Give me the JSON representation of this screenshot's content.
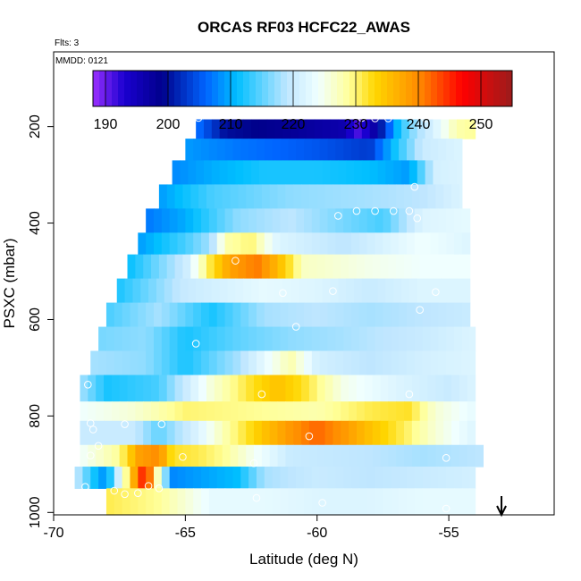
{
  "chart_data": {
    "type": "heatmap",
    "title": "ORCAS RF03 HCFC22_AWAS",
    "annotations": [
      "Flts: 3",
      "MMDD: 0121"
    ],
    "xlabel": "Latitude (deg N)",
    "ylabel": "PSXC (mbar)",
    "xlim": [
      -70,
      -51
    ],
    "ylim": [
      1005,
      45
    ],
    "x_ticks": [
      -70,
      -65,
      -60,
      -55
    ],
    "x_tick_labels": [
      "-70",
      "-65",
      "-60",
      "-55"
    ],
    "y_ticks": [
      200,
      400,
      600,
      800,
      1000
    ],
    "y_tick_labels": [
      "200",
      "400",
      "600",
      "800",
      "1000"
    ],
    "colorbar": {
      "range": [
        188,
        255
      ],
      "ticks": [
        190,
        200,
        210,
        220,
        230,
        240,
        250
      ],
      "tick_labels": [
        "190",
        "200",
        "210",
        "220",
        "230",
        "240",
        "250"
      ],
      "placement": "top-inside"
    },
    "colormap": [
      {
        "v": 188,
        "c": "#9b30ff"
      },
      {
        "v": 193,
        "c": "#1a00d0"
      },
      {
        "v": 199,
        "c": "#00008b"
      },
      {
        "v": 206,
        "c": "#0064ff"
      },
      {
        "v": 211,
        "c": "#00bfff"
      },
      {
        "v": 219,
        "c": "#bfe6ff"
      },
      {
        "v": 224,
        "c": "#f0ffff"
      },
      {
        "v": 229,
        "c": "#ffff99"
      },
      {
        "v": 233,
        "c": "#ffd700"
      },
      {
        "v": 240,
        "c": "#ff8c00"
      },
      {
        "v": 247,
        "c": "#ff0000"
      },
      {
        "v": 255,
        "c": "#9b1c1c"
      }
    ],
    "bands": [
      {
        "p0": 185,
        "p1": 225,
        "x0": -64.6,
        "x1": -54.0,
        "stops": [
          [
            -64.6,
            207
          ],
          [
            -63.5,
            200
          ],
          [
            -61.0,
            198
          ],
          [
            -59.0,
            196
          ],
          [
            -58.5,
            191
          ],
          [
            -58.0,
            194
          ],
          [
            -57.0,
            210
          ],
          [
            -56.5,
            216
          ],
          [
            -55.5,
            222
          ],
          [
            -54.7,
            228
          ],
          [
            -54.0,
            229
          ]
        ]
      },
      {
        "p0": 225,
        "p1": 270,
        "x0": -65.0,
        "x1": -54.5,
        "stops": [
          [
            -65.0,
            209
          ],
          [
            -63.0,
            207
          ],
          [
            -60.0,
            205
          ],
          [
            -58.0,
            203
          ],
          [
            -57.0,
            212
          ],
          [
            -56.0,
            220
          ],
          [
            -54.5,
            222
          ]
        ]
      },
      {
        "p0": 270,
        "p1": 320,
        "x0": -65.5,
        "x1": -54.5,
        "stops": [
          [
            -65.5,
            208
          ],
          [
            -64.0,
            210
          ],
          [
            -62.0,
            212
          ],
          [
            -60.0,
            212
          ],
          [
            -58.0,
            211
          ],
          [
            -56.5,
            209
          ],
          [
            -55.5,
            221
          ],
          [
            -54.5,
            222
          ]
        ]
      },
      {
        "p0": 320,
        "p1": 370,
        "x0": -66.0,
        "x1": -54.5,
        "stops": [
          [
            -66.0,
            209
          ],
          [
            -64.0,
            214
          ],
          [
            -61.0,
            217
          ],
          [
            -58.0,
            218
          ],
          [
            -56.0,
            219
          ],
          [
            -54.5,
            222
          ]
        ]
      },
      {
        "p0": 370,
        "p1": 420,
        "x0": -66.5,
        "x1": -54.2,
        "stops": [
          [
            -66.5,
            207
          ],
          [
            -65.0,
            210
          ],
          [
            -63.0,
            217
          ],
          [
            -61.0,
            219
          ],
          [
            -59.0,
            216
          ],
          [
            -57.5,
            214
          ],
          [
            -56.0,
            222
          ],
          [
            -54.2,
            223
          ]
        ]
      },
      {
        "p0": 420,
        "p1": 465,
        "x0": -66.8,
        "x1": -54.2,
        "stops": [
          [
            -66.8,
            209
          ],
          [
            -65.0,
            214
          ],
          [
            -64.0,
            218
          ],
          [
            -63.5,
            228
          ],
          [
            -62.5,
            230
          ],
          [
            -61.5,
            222
          ],
          [
            -59.0,
            219
          ],
          [
            -56.0,
            224
          ],
          [
            -54.2,
            222
          ]
        ]
      },
      {
        "p0": 465,
        "p1": 515,
        "x0": -67.2,
        "x1": -54.2,
        "stops": [
          [
            -67.2,
            211
          ],
          [
            -65.0,
            220
          ],
          [
            -64.0,
            232
          ],
          [
            -63.3,
            238
          ],
          [
            -62.3,
            241
          ],
          [
            -61.5,
            236
          ],
          [
            -60.5,
            227
          ],
          [
            -58.0,
            225
          ],
          [
            -56.0,
            224
          ],
          [
            -54.2,
            224
          ]
        ]
      },
      {
        "p0": 515,
        "p1": 565,
        "x0": -67.6,
        "x1": -54.2,
        "stops": [
          [
            -67.6,
            212
          ],
          [
            -65.0,
            220
          ],
          [
            -62.0,
            223
          ],
          [
            -60.0,
            222
          ],
          [
            -58.0,
            220
          ],
          [
            -56.0,
            222
          ],
          [
            -54.2,
            222
          ]
        ]
      },
      {
        "p0": 565,
        "p1": 615,
        "x0": -68.0,
        "x1": -54.2,
        "stops": [
          [
            -68.0,
            214
          ],
          [
            -66.0,
            218
          ],
          [
            -64.0,
            212
          ],
          [
            -62.0,
            218
          ],
          [
            -60.0,
            219
          ],
          [
            -58.0,
            218
          ],
          [
            -56.0,
            219
          ],
          [
            -54.2,
            220
          ]
        ]
      },
      {
        "p0": 615,
        "p1": 665,
        "x0": -68.3,
        "x1": -54.0,
        "stops": [
          [
            -68.3,
            216
          ],
          [
            -66.5,
            217
          ],
          [
            -65.0,
            212
          ],
          [
            -63.0,
            215
          ],
          [
            -61.0,
            217
          ],
          [
            -59.0,
            218
          ],
          [
            -56.0,
            220
          ],
          [
            -54.0,
            222
          ]
        ]
      },
      {
        "p0": 665,
        "p1": 715,
        "x0": -68.6,
        "x1": -54.0,
        "stops": [
          [
            -68.6,
            218
          ],
          [
            -66.5,
            217
          ],
          [
            -65.0,
            212
          ],
          [
            -63.0,
            218
          ],
          [
            -61.0,
            228
          ],
          [
            -60.0,
            221
          ],
          [
            -58.0,
            219
          ],
          [
            -56.0,
            221
          ],
          [
            -54.0,
            222
          ]
        ]
      },
      {
        "p0": 715,
        "p1": 770,
        "x0": -69.0,
        "x1": -54.0,
        "stops": [
          [
            -69.0,
            218
          ],
          [
            -68.0,
            212
          ],
          [
            -66.0,
            214
          ],
          [
            -64.0,
            226
          ],
          [
            -62.5,
            232
          ],
          [
            -61.5,
            235
          ],
          [
            -60.5,
            232
          ],
          [
            -59.0,
            225
          ],
          [
            -57.0,
            222
          ],
          [
            -55.0,
            220
          ],
          [
            -54.0,
            222
          ]
        ]
      },
      {
        "p0": 770,
        "p1": 810,
        "x0": -69.0,
        "x1": -54.0,
        "stops": [
          [
            -69.0,
            224
          ],
          [
            -67.0,
            226
          ],
          [
            -65.0,
            230
          ],
          [
            -62.0,
            229
          ],
          [
            -60.0,
            228
          ],
          [
            -58.0,
            231
          ],
          [
            -56.5,
            232
          ],
          [
            -55.5,
            226
          ],
          [
            -54.0,
            223
          ]
        ]
      },
      {
        "p0": 810,
        "p1": 860,
        "x0": -69.0,
        "x1": -54.0,
        "stops": [
          [
            -69.0,
            220
          ],
          [
            -67.0,
            220
          ],
          [
            -66.0,
            215
          ],
          [
            -64.5,
            222
          ],
          [
            -63.5,
            228
          ],
          [
            -62.0,
            235
          ],
          [
            -61.0,
            239
          ],
          [
            -60.0,
            242
          ],
          [
            -59.0,
            239
          ],
          [
            -58.0,
            235
          ],
          [
            -56.5,
            230
          ],
          [
            -55.5,
            226
          ],
          [
            -54.0,
            222
          ]
        ]
      },
      {
        "p0": 860,
        "p1": 905,
        "x0": -69.0,
        "x1": -53.7,
        "stops": [
          [
            -69.0,
            224
          ],
          [
            -67.5,
            229
          ],
          [
            -66.8,
            238
          ],
          [
            -66.0,
            240
          ],
          [
            -65.5,
            232
          ],
          [
            -64.5,
            231
          ],
          [
            -63.5,
            229
          ],
          [
            -62.5,
            225
          ],
          [
            -61.0,
            220
          ],
          [
            -58.0,
            219
          ],
          [
            -56.0,
            218
          ],
          [
            -53.7,
            219
          ]
        ]
      },
      {
        "p0": 905,
        "p1": 950,
        "x0": -69.2,
        "x1": -54.0,
        "stops": [
          [
            -69.2,
            220
          ],
          [
            -68.5,
            212
          ],
          [
            -68.0,
            208
          ],
          [
            -67.0,
            236
          ],
          [
            -66.5,
            248
          ],
          [
            -66.0,
            225
          ],
          [
            -65.5,
            208
          ],
          [
            -63.0,
            211
          ],
          [
            -62.0,
            218
          ],
          [
            -60.0,
            220
          ],
          [
            -58.0,
            219
          ],
          [
            -56.0,
            220
          ],
          [
            -54.0,
            221
          ]
        ]
      },
      {
        "p0": 950,
        "p1": 1005,
        "x0": -68.0,
        "x1": -54.0,
        "stops": [
          [
            -68.0,
            231
          ],
          [
            -66.0,
            229
          ],
          [
            -64.0,
            223
          ],
          [
            -62.0,
            223
          ],
          [
            -60.0,
            222
          ],
          [
            -58.0,
            222
          ],
          [
            -56.0,
            223
          ],
          [
            -54.0,
            223
          ]
        ]
      }
    ],
    "sample_points": [
      {
        "lat": -64.5,
        "p": 182
      },
      {
        "lat": -58.3,
        "p": 182
      },
      {
        "lat": -57.8,
        "p": 183
      },
      {
        "lat": -57.3,
        "p": 183
      },
      {
        "lat": -55.9,
        "p": 183
      },
      {
        "lat": -56.3,
        "p": 325
      },
      {
        "lat": -58.5,
        "p": 375
      },
      {
        "lat": -57.8,
        "p": 375
      },
      {
        "lat": -57.1,
        "p": 375
      },
      {
        "lat": -56.5,
        "p": 375
      },
      {
        "lat": -59.2,
        "p": 385
      },
      {
        "lat": -56.2,
        "p": 390
      },
      {
        "lat": -63.1,
        "p": 478
      },
      {
        "lat": -61.3,
        "p": 545
      },
      {
        "lat": -59.4,
        "p": 541
      },
      {
        "lat": -55.5,
        "p": 543
      },
      {
        "lat": -56.1,
        "p": 580
      },
      {
        "lat": -60.8,
        "p": 615
      },
      {
        "lat": -64.6,
        "p": 650
      },
      {
        "lat": -68.7,
        "p": 735
      },
      {
        "lat": -62.1,
        "p": 755
      },
      {
        "lat": -56.5,
        "p": 755
      },
      {
        "lat": -68.6,
        "p": 815
      },
      {
        "lat": -67.3,
        "p": 817
      },
      {
        "lat": -65.9,
        "p": 817
      },
      {
        "lat": -68.5,
        "p": 828
      },
      {
        "lat": -60.3,
        "p": 842
      },
      {
        "lat": -68.3,
        "p": 862
      },
      {
        "lat": -68.6,
        "p": 882
      },
      {
        "lat": -65.1,
        "p": 885
      },
      {
        "lat": -62.4,
        "p": 898
      },
      {
        "lat": -55.1,
        "p": 887
      },
      {
        "lat": -68.8,
        "p": 947
      },
      {
        "lat": -66.4,
        "p": 945
      },
      {
        "lat": -66.0,
        "p": 950
      },
      {
        "lat": -67.7,
        "p": 955
      },
      {
        "lat": -67.3,
        "p": 962
      },
      {
        "lat": -66.8,
        "p": 960
      },
      {
        "lat": -62.3,
        "p": 970
      },
      {
        "lat": -59.8,
        "p": 980
      },
      {
        "lat": -55.1,
        "p": 992
      }
    ],
    "arrow_lat": -53.0,
    "grid": false
  }
}
